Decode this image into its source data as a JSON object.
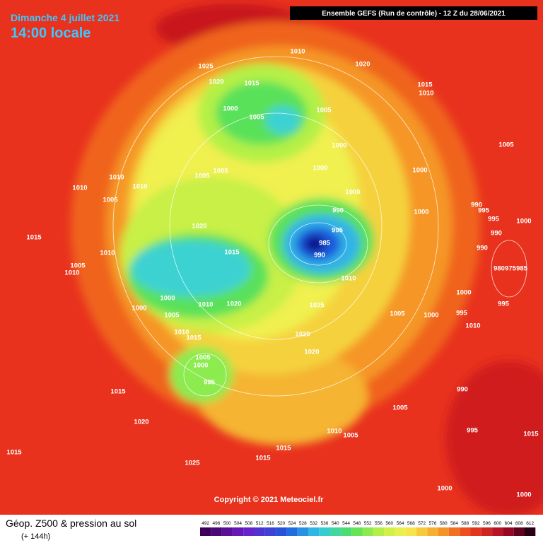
{
  "header": {
    "date": "Dimanche 4 juillet 2021",
    "time": "14:00 locale",
    "model": "Ensemble GEFS  (Run de contrôle)  -  12 Z du 28/06/2021"
  },
  "isobar_labels": [
    "1010",
    "1025",
    "1020",
    "1020",
    "1015",
    "1015",
    "1010",
    "1000",
    "1005",
    "1005",
    "1000",
    "1005",
    "1005",
    "1005",
    "1000",
    "1000",
    "1010",
    "1010",
    "1010",
    "1000",
    "1005",
    "990",
    "995",
    "990",
    "1000",
    "995",
    "1000",
    "1020",
    "995",
    "1015",
    "990",
    "985",
    "1015",
    "1010",
    "990",
    "990",
    "1005",
    "1010",
    "980",
    "975",
    "985",
    "1010",
    "1000",
    "1000",
    "995",
    "1010",
    "1020",
    "1025",
    "1000",
    "1005",
    "1005",
    "1000",
    "995",
    "1010",
    "1010",
    "1020",
    "1015",
    "1020",
    "1005",
    "1000",
    "995",
    "990",
    "1015",
    "1005",
    "1020",
    "1010",
    "1005",
    "995",
    "1015",
    "1015",
    "1015",
    "1015",
    "1025",
    "1000",
    "1000"
  ],
  "copyright": "Copyright © 2021 Meteociel.fr",
  "footer": {
    "title": "Géop. Z500 & pression au sol",
    "lead": "(+ 144h)"
  },
  "colorbar": {
    "ticks": [
      492,
      496,
      500,
      504,
      508,
      512,
      516,
      520,
      524,
      528,
      532,
      536,
      540,
      544,
      548,
      552,
      556,
      560,
      564,
      568,
      572,
      576,
      580,
      584,
      588,
      592,
      596,
      600,
      604,
      608,
      612
    ]
  }
}
